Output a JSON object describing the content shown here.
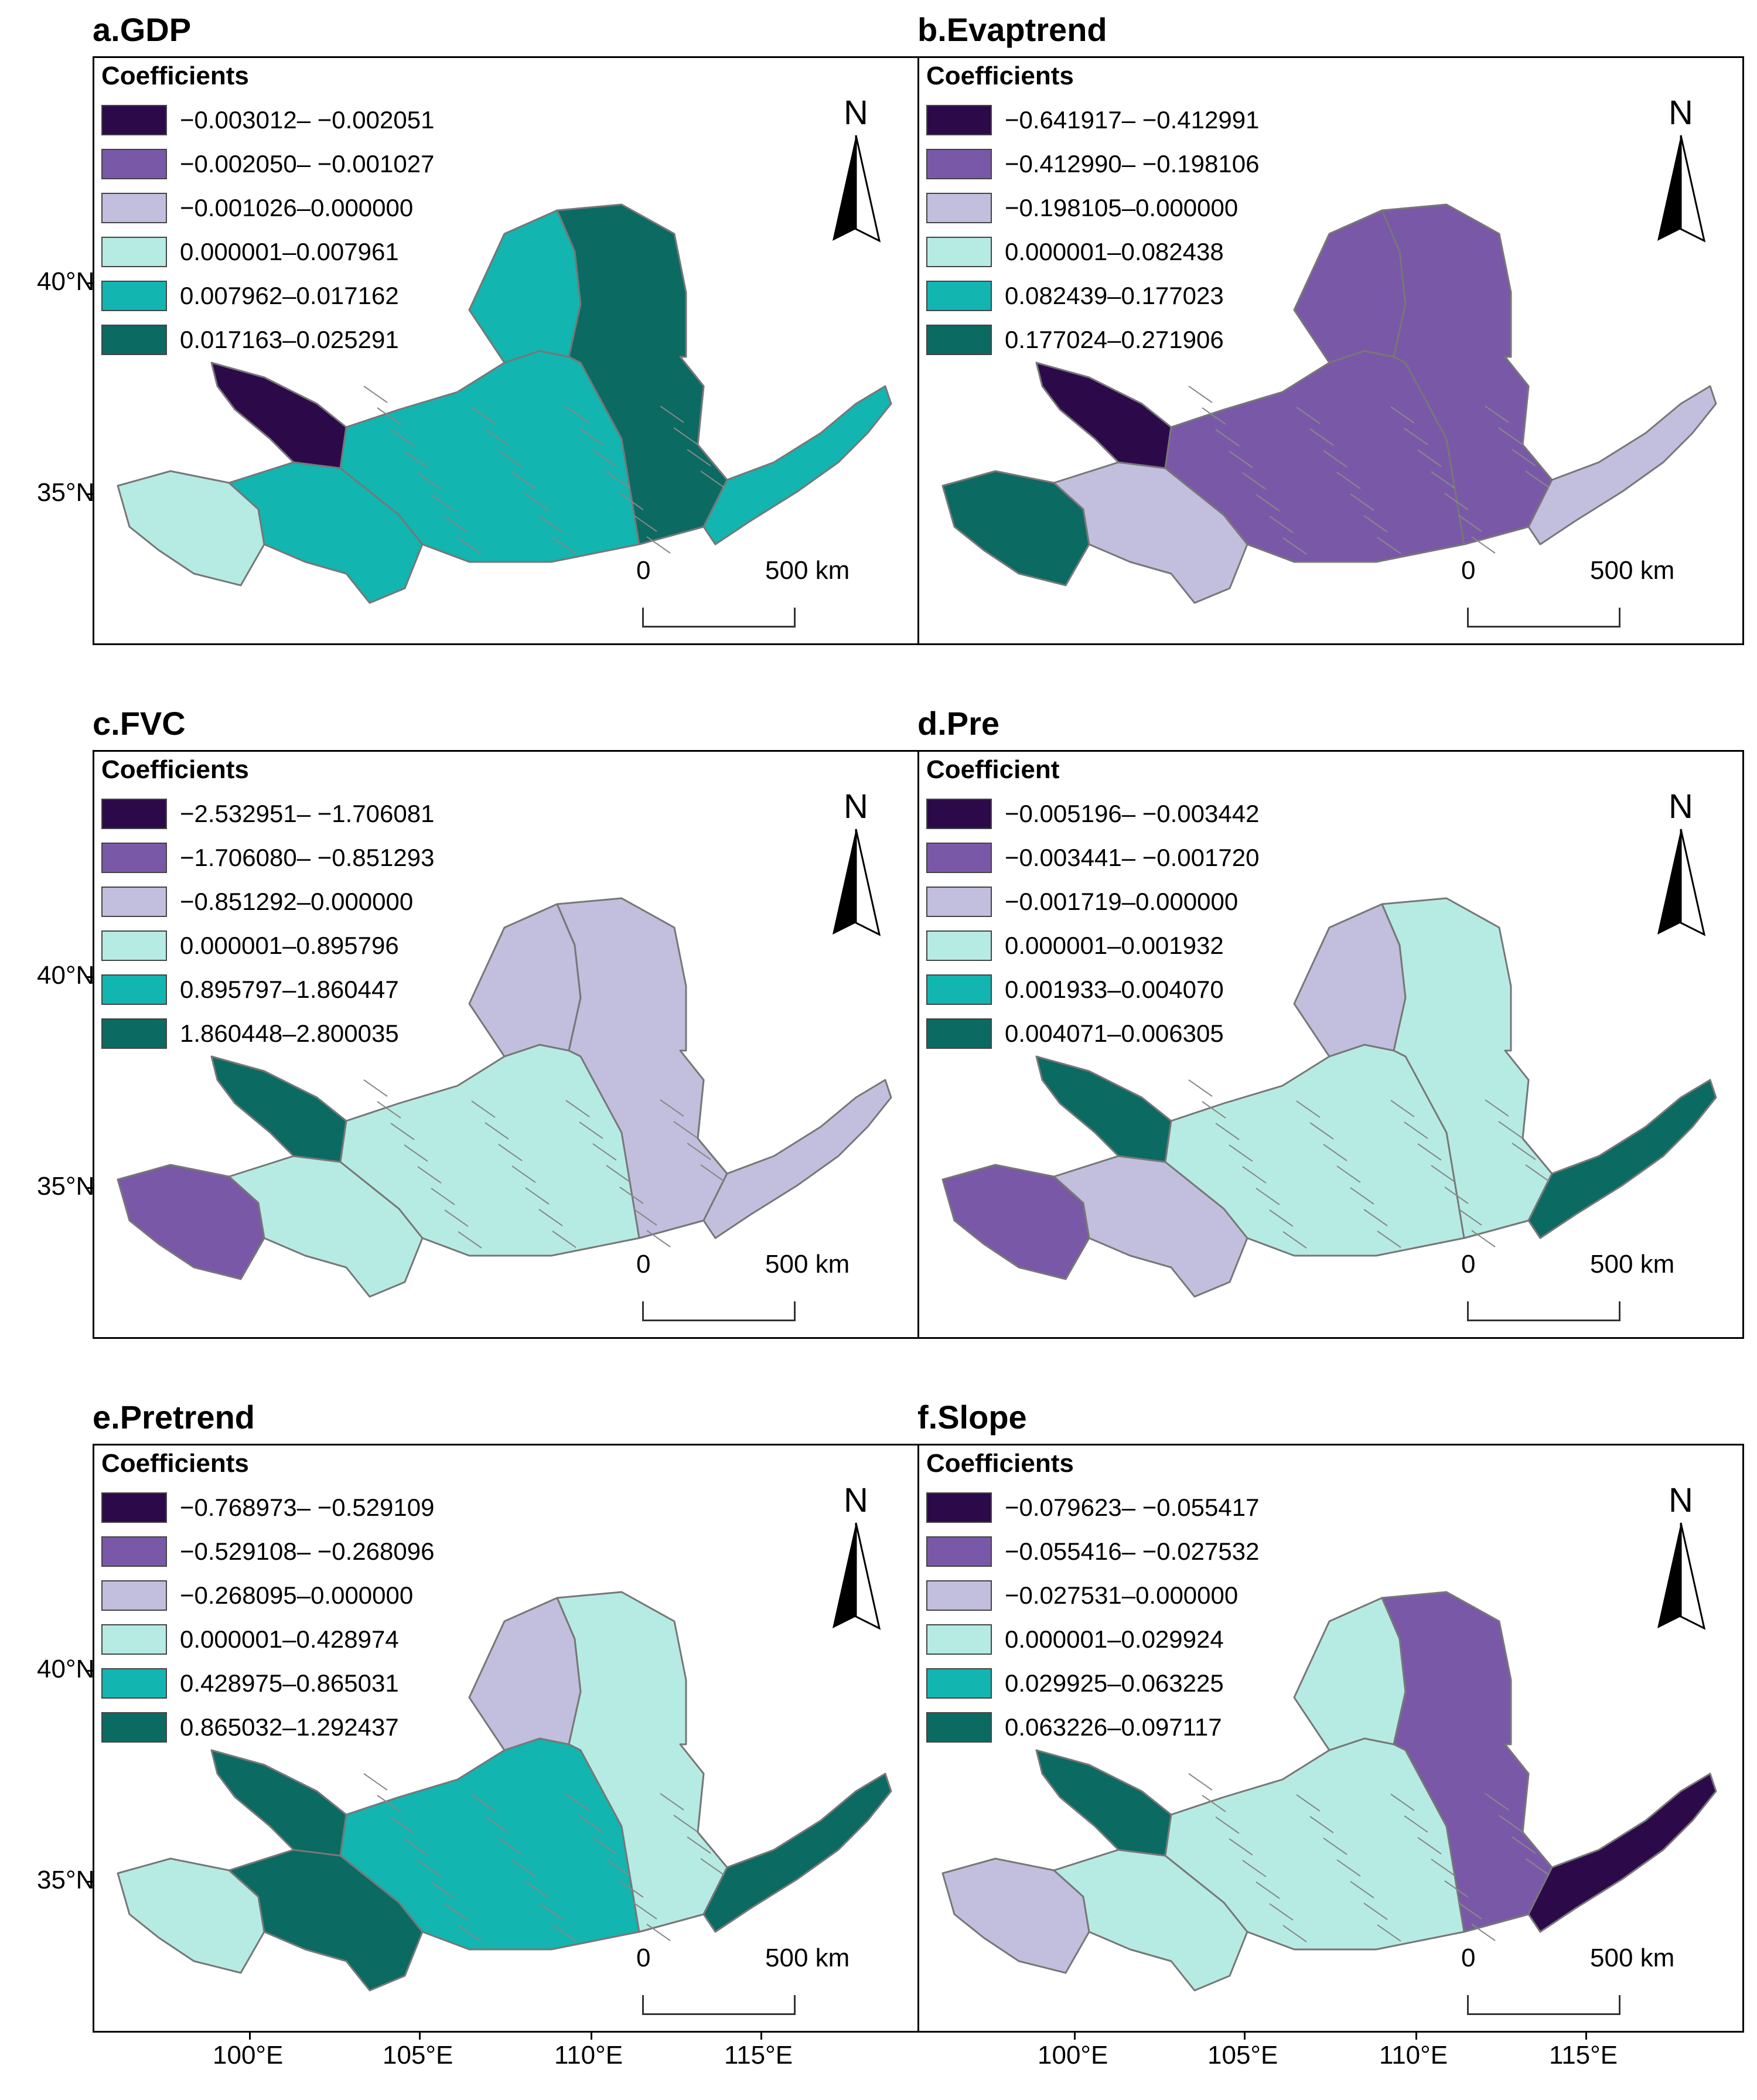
{
  "axes": {
    "lat_labels": [
      "40°N",
      "35°N"
    ],
    "lon_labels": [
      "100°E",
      "105°E",
      "110°E",
      "115°E"
    ]
  },
  "scale": {
    "start": "0",
    "end": "500 km"
  },
  "north": "N",
  "panels": [
    {
      "id": "a",
      "title": "a.GDP",
      "legend_title": "Coefficients",
      "classes": [
        "−0.003012– −0.002051",
        "−0.002050– −0.001027",
        "−0.001026–0.000000",
        "0.000001–0.007961",
        "0.007962–0.017162",
        "0.017163–0.025291"
      ]
    },
    {
      "id": "b",
      "title": "b.Evaptrend",
      "legend_title": "Coefficients",
      "classes": [
        "−0.641917– −0.412991",
        "−0.412990– −0.198106",
        "−0.198105–0.000000",
        "0.000001–0.082438",
        "0.082439–0.177023",
        "0.177024–0.271906"
      ]
    },
    {
      "id": "c",
      "title": "c.FVC",
      "legend_title": "Coefficients",
      "classes": [
        "−2.532951– −1.706081",
        "−1.706080– −0.851293",
        "−0.851292–0.000000",
        "0.000001–0.895796",
        "0.895797–1.860447",
        "1.860448–2.800035"
      ]
    },
    {
      "id": "d",
      "title": "d.Pre",
      "legend_title": "Coefficient",
      "classes": [
        "−0.005196– −0.003442",
        "−0.003441– −0.001720",
        "−0.001719–0.000000",
        "0.000001–0.001932",
        "0.001933–0.004070",
        "0.004071–0.006305"
      ]
    },
    {
      "id": "e",
      "title": "e.Pretrend",
      "legend_title": "Coefficients",
      "classes": [
        "−0.768973– −0.529109",
        "−0.529108– −0.268096",
        "−0.268095–0.000000",
        "0.000001–0.428974",
        "0.428975–0.865031",
        "0.865032–1.292437"
      ]
    },
    {
      "id": "f",
      "title": "f.Slope",
      "legend_title": "Coefficients",
      "classes": [
        "−0.079623– −0.055417",
        "−0.055416– −0.027532",
        "−0.027531–0.000000",
        "0.000001–0.029924",
        "0.029925–0.063225",
        "0.063226–0.097117"
      ]
    }
  ],
  "class_colors": [
    "#2c0a4a",
    "#7a58a8",
    "#c2bedd",
    "#b6ebe3",
    "#12b5b0",
    "#0b6a62"
  ],
  "region_classes": {
    "a": {
      "west": 3,
      "southwest": 4,
      "northwest_strip": 0,
      "central": 4,
      "north_loop": 4,
      "ordos_east": 5,
      "east_tail": 4
    },
    "b": {
      "west": 5,
      "southwest": 2,
      "northwest_strip": 0,
      "central": 1,
      "north_loop": 1,
      "ordos_east": 1,
      "east_tail": 2
    },
    "c": {
      "west": 1,
      "southwest": 3,
      "northwest_strip": 5,
      "central": 3,
      "north_loop": 2,
      "ordos_east": 2,
      "east_tail": 2
    },
    "d": {
      "west": 1,
      "southwest": 2,
      "northwest_strip": 5,
      "central": 3,
      "north_loop": 2,
      "ordos_east": 3,
      "east_tail": 5
    },
    "e": {
      "west": 3,
      "southwest": 5,
      "northwest_strip": 5,
      "central": 4,
      "north_loop": 2,
      "ordos_east": 3,
      "east_tail": 5
    },
    "f": {
      "west": 2,
      "southwest": 3,
      "northwest_strip": 5,
      "central": 3,
      "north_loop": 3,
      "ordos_east": 1,
      "east_tail": 0
    }
  }
}
